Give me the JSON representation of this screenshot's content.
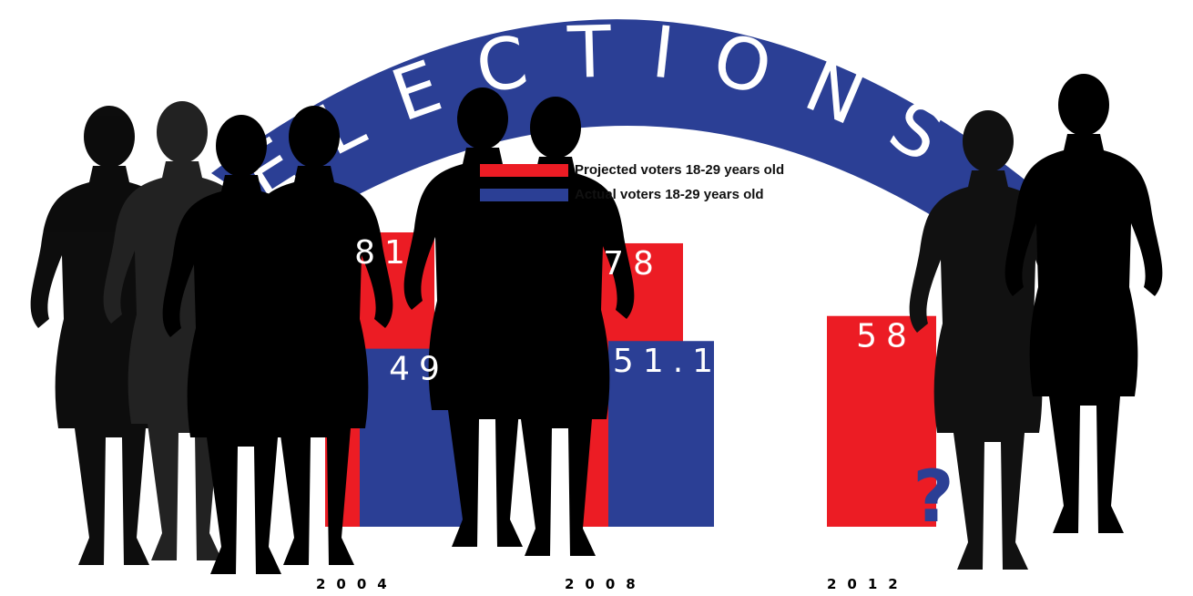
{
  "chart_data": {
    "type": "bar",
    "title": "ELECTIONS",
    "categories": [
      "2004",
      "2008",
      "2012"
    ],
    "series": [
      {
        "name": "Projected voters 18-29 years old",
        "color": "#ec1c24",
        "values": [
          81,
          78,
          58
        ]
      },
      {
        "name": "Actual voters 18-29 years old",
        "color": "#2b3f95",
        "values": [
          49,
          51.1,
          null
        ]
      }
    ],
    "annotation": "?"
  }
}
